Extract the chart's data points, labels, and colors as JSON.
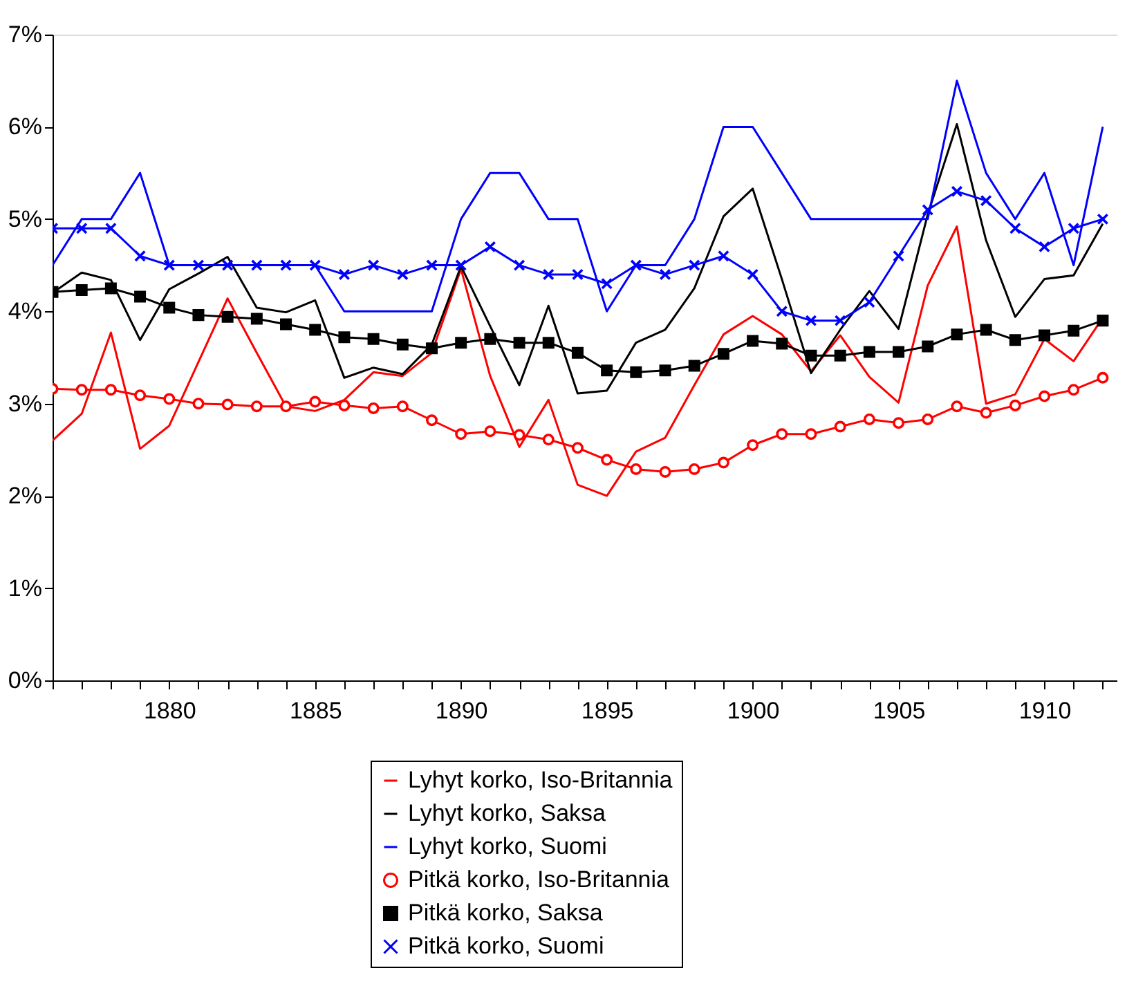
{
  "chart_data": {
    "type": "line",
    "legend": "bottom",
    "grid": false,
    "line_style": "solid",
    "x": [
      1876,
      1877,
      1878,
      1879,
      1880,
      1881,
      1882,
      1883,
      1884,
      1885,
      1886,
      1887,
      1888,
      1889,
      1890,
      1891,
      1892,
      1893,
      1894,
      1895,
      1896,
      1897,
      1898,
      1899,
      1900,
      1901,
      1902,
      1903,
      1904,
      1905,
      1906,
      1907,
      1908,
      1909,
      1910,
      1911,
      1912
    ],
    "xlim": [
      1876,
      1912.5
    ],
    "xticks": [
      {
        "value": 1876,
        "label": null
      },
      {
        "value": 1877,
        "label": null
      },
      {
        "value": 1878,
        "label": null
      },
      {
        "value": 1879,
        "label": null
      },
      1880,
      {
        "value": 1881,
        "label": null
      },
      {
        "value": 1882,
        "label": null
      },
      {
        "value": 1883,
        "label": null
      },
      {
        "value": 1884,
        "label": null
      },
      1885,
      {
        "value": 1886,
        "label": null
      },
      {
        "value": 1887,
        "label": null
      },
      {
        "value": 1888,
        "label": null
      },
      {
        "value": 1889,
        "label": null
      },
      1890,
      {
        "value": 1891,
        "label": null
      },
      {
        "value": 1892,
        "label": null
      },
      {
        "value": 1893,
        "label": null
      },
      {
        "value": 1894,
        "label": null
      },
      1895,
      {
        "value": 1896,
        "label": null
      },
      {
        "value": 1897,
        "label": null
      },
      {
        "value": 1898,
        "label": null
      },
      {
        "value": 1899,
        "label": null
      },
      1900,
      {
        "value": 1901,
        "label": null
      },
      {
        "value": 1902,
        "label": null
      },
      {
        "value": 1903,
        "label": null
      },
      {
        "value": 1904,
        "label": null
      },
      1905,
      {
        "value": 1906,
        "label": null
      },
      {
        "value": 1907,
        "label": null
      },
      {
        "value": 1908,
        "label": null
      },
      {
        "value": 1909,
        "label": null
      },
      1910,
      {
        "value": 1911,
        "label": null
      },
      {
        "value": 1912,
        "label": null
      }
    ],
    "ylim": [
      0,
      7
    ],
    "yticks": [
      {
        "value": 0,
        "label": "0%"
      },
      {
        "value": 1,
        "label": "1%"
      },
      {
        "value": 2,
        "label": "2%"
      },
      {
        "value": 3,
        "label": "3%"
      },
      {
        "value": 4,
        "label": "4%"
      },
      {
        "value": 5,
        "label": "5%"
      },
      {
        "value": 6,
        "label": "6%"
      },
      {
        "value": 7,
        "label": "7%"
      }
    ],
    "series": [
      {
        "name": "Lyhyt korko, Iso-Britannia",
        "color": "#ff0000",
        "marker": "none",
        "values": [
          2.6,
          2.89,
          3.77,
          2.51,
          2.76,
          3.45,
          4.14,
          3.55,
          2.97,
          2.92,
          3.04,
          3.34,
          3.3,
          3.55,
          4.46,
          3.3,
          2.53,
          3.04,
          2.12,
          2.0,
          2.48,
          2.63,
          3.2,
          3.75,
          3.95,
          3.75,
          3.35,
          3.74,
          3.29,
          3.01,
          4.28,
          4.92,
          3.0,
          3.1,
          3.7,
          3.46,
          3.93
        ]
      },
      {
        "name": "Lyhyt korko, Saksa",
        "color": "#000000",
        "marker": "none",
        "values": [
          4.2,
          4.42,
          4.34,
          3.69,
          4.24,
          4.41,
          4.59,
          4.04,
          3.99,
          4.12,
          3.28,
          3.39,
          3.32,
          3.64,
          4.49,
          3.84,
          3.2,
          4.06,
          3.11,
          3.14,
          3.66,
          3.8,
          4.25,
          5.03,
          5.33,
          4.35,
          3.33,
          3.8,
          4.22,
          3.81,
          5.05,
          6.03,
          4.77,
          3.94,
          4.35,
          4.39,
          4.95
        ]
      },
      {
        "name": "Lyhyt korko, Suomi",
        "color": "#0000ff",
        "marker": "none",
        "values": [
          4.5,
          5.0,
          5.0,
          5.5,
          4.5,
          4.5,
          4.5,
          4.5,
          4.5,
          4.5,
          4.0,
          4.0,
          4.0,
          4.0,
          5.0,
          5.5,
          5.5,
          5.0,
          5.0,
          4.0,
          4.5,
          4.5,
          5.0,
          6.0,
          6.0,
          5.5,
          5.0,
          5.0,
          5.0,
          5.0,
          5.0,
          6.5,
          5.5,
          5.0,
          5.5,
          4.5,
          6.0
        ]
      },
      {
        "name": "Pitkä korko, Iso-Britannia",
        "color": "#ff0000",
        "marker": "circle",
        "values": [
          3.16,
          3.15,
          3.15,
          3.09,
          3.05,
          3.0,
          2.99,
          2.97,
          2.97,
          3.02,
          2.98,
          2.95,
          2.97,
          2.82,
          2.67,
          2.7,
          2.66,
          2.61,
          2.52,
          2.39,
          2.29,
          2.26,
          2.29,
          2.36,
          2.55,
          2.67,
          2.67,
          2.75,
          2.83,
          2.79,
          2.83,
          2.97,
          2.9,
          2.98,
          3.08,
          3.15,
          3.28
        ]
      },
      {
        "name": "Pitkä korko, Saksa",
        "color": "#000000",
        "marker": "square",
        "values": [
          4.21,
          4.23,
          4.25,
          4.16,
          4.04,
          3.96,
          3.94,
          3.92,
          3.86,
          3.8,
          3.72,
          3.7,
          3.64,
          3.6,
          3.66,
          3.7,
          3.66,
          3.66,
          3.55,
          3.36,
          3.34,
          3.36,
          3.41,
          3.54,
          3.68,
          3.65,
          3.52,
          3.52,
          3.56,
          3.56,
          3.62,
          3.75,
          3.8,
          3.69,
          3.74,
          3.79,
          3.9
        ]
      },
      {
        "name": "Pitkä korko, Suomi",
        "color": "#0000ff",
        "marker": "cross",
        "values": [
          4.9,
          4.9,
          4.9,
          4.6,
          4.5,
          4.5,
          4.5,
          4.5,
          4.5,
          4.5,
          4.4,
          4.5,
          4.4,
          4.5,
          4.5,
          4.7,
          4.5,
          4.4,
          4.4,
          4.3,
          4.5,
          4.4,
          4.5,
          4.6,
          4.4,
          4.0,
          3.9,
          3.9,
          4.1,
          4.6,
          5.1,
          5.3,
          5.2,
          4.9,
          4.7,
          4.9,
          5.0
        ]
      }
    ]
  }
}
